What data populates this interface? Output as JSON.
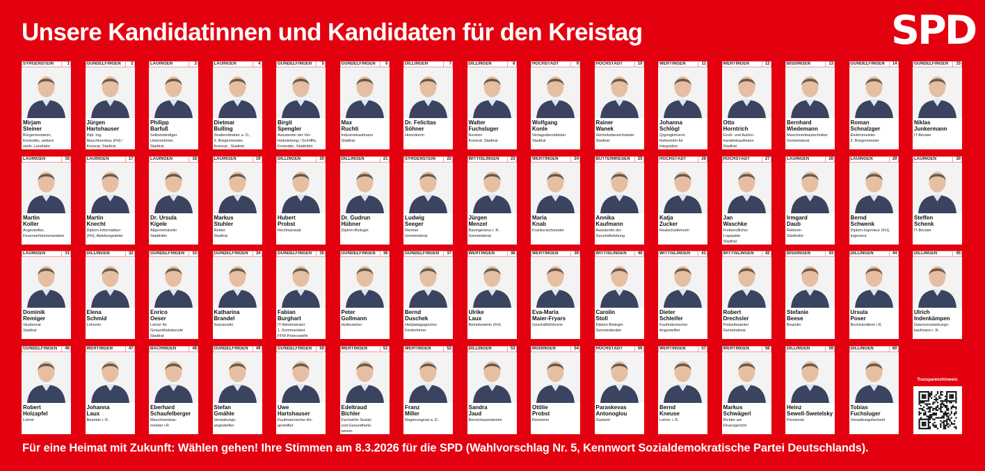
{
  "header": {
    "title": "Unsere Kandidatinnen und Kandidaten für den Kreistag",
    "logo": "SPD"
  },
  "colors": {
    "brand_red": "#e3000f",
    "card_border": "#f19aa0"
  },
  "candidates": [
    {
      "n": "1",
      "town": "SYRGENSTEIN",
      "first": "Mirjam",
      "last": "Steiner",
      "title": [
        "Bürgermeisterin,",
        "Kreisrätin, weitere",
        "stellv. Landrätin"
      ]
    },
    {
      "n": "2",
      "town": "GUNDELFINGEN",
      "first": "Jürgen",
      "last": "Hartshauser",
      "title": [
        "Dipl. Ing.",
        "Maschinenbau (FH) /",
        "Kreisrat, Stadtrat"
      ]
    },
    {
      "n": "3",
      "town": "LAUINGEN",
      "first": "Philipp",
      "last": "Barfuß",
      "title": [
        "Selbstständiger",
        "Unternehmer,",
        "Stadtrat"
      ]
    },
    {
      "n": "4",
      "town": "LAUINGEN",
      "first": "Dietmar",
      "last": "Bulling",
      "title": [
        "Studiendirektor a. D.,",
        "3. Bürgermeister,",
        "Kreisrat , Stadtrat"
      ]
    },
    {
      "n": "5",
      "town": "GUNDELFINGEN",
      "first": "Birgit",
      "last": "Spengler",
      "title": [
        "Assistentin der Ver-",
        "triebsleitung / Schöffin,",
        "Kreisrätin, Stadträtin"
      ]
    },
    {
      "n": "6",
      "town": "GUNDELFINGEN",
      "first": "Max",
      "last": "Ruchti",
      "title": [
        "Industriekaufmann",
        "Stadtrat"
      ]
    },
    {
      "n": "7",
      "town": "DILLINGEN",
      "first": "Dr. Felicitas",
      "last": "Söhner",
      "title": [
        "Historikerin"
      ]
    },
    {
      "n": "8",
      "town": "DILLINGEN",
      "first": "Walter",
      "last": "Fuchsluger",
      "title": [
        "Rentner",
        "Kreisrat, Stadtrat"
      ]
    },
    {
      "n": "9",
      "town": "HÖCHSTÄDT",
      "first": "Wolfgang",
      "last": "Konle",
      "title": [
        "Verlagsdienstleister",
        "Stadtrat"
      ]
    },
    {
      "n": "10",
      "town": "HÖCHSTÄDT",
      "first": "Rainer",
      "last": "Wanek",
      "title": [
        "Vertriebsbereichsleiter",
        "Stadtrat"
      ]
    },
    {
      "n": "11",
      "town": "WERTINGEN",
      "first": "Johanna",
      "last": "Schlögl",
      "title": [
        "Qigonglehrerin",
        "Referentin für",
        "Integration"
      ]
    },
    {
      "n": "12",
      "town": "WERTINGEN",
      "first": "Otto",
      "last": "Horntrich",
      "title": [
        "Groß- und Außen-",
        "handelskaufmann",
        "Stadtrat"
      ]
    },
    {
      "n": "13",
      "town": "BISSINGEN",
      "first": "Bernhard",
      "last": "Wiedemann",
      "title": [
        "Maschinenbautechniker",
        "Gemeinderat"
      ]
    },
    {
      "n": "14",
      "town": "GUNDELFINGEN",
      "first": "Roman",
      "last": "Schnalzger",
      "title": [
        "Elektromeister",
        "2. Bürgermeister"
      ]
    },
    {
      "n": "15",
      "town": "GUNDELFINGEN",
      "first": "Niklas",
      "last": "Junkermann",
      "title": [
        "IT-Berater"
      ]
    },
    {
      "n": "16",
      "town": "LAUINGEN",
      "first": "Martin",
      "last": "Koller",
      "title": [
        "Angestellter,",
        "Feuerwehrkommandant"
      ]
    },
    {
      "n": "17",
      "town": "LAUINGEN",
      "first": "Martin",
      "last": "Knecht",
      "title": [
        "Diplom-Informatiker",
        "(FH), Abteilungsleiter"
      ]
    },
    {
      "n": "18",
      "town": "LAUINGEN",
      "first": "Dr. Ursula",
      "last": "Kigele",
      "title": [
        "Allgemeinärztin",
        "Stadträtin"
      ]
    },
    {
      "n": "19",
      "town": "LAUINGEN",
      "first": "Markus",
      "last": "Stuhler",
      "title": [
        "Rektor",
        "Stadtrat"
      ]
    },
    {
      "n": "20",
      "town": "DILLINGEN",
      "first": "Hubert",
      "last": "Probst",
      "title": [
        "Rechtsanwalt"
      ]
    },
    {
      "n": "21",
      "town": "DILLINGEN",
      "first": "Dr. Gudrun",
      "last": "Hübner",
      "title": [
        "Diplom-Biologin"
      ]
    },
    {
      "n": "22",
      "town": "SYRGENSTEIN",
      "first": "Ludwig",
      "last": "Seeger",
      "title": [
        "Rentner",
        "Gemeinderat"
      ]
    },
    {
      "n": "23",
      "town": "WITTISLINGEN",
      "first": "Jürgen",
      "last": "Menzel",
      "title": [
        "Bauingenieur i. R.",
        "Gemeinderat"
      ]
    },
    {
      "n": "24",
      "town": "WERTINGEN",
      "first": "Maria",
      "last": "Knab",
      "title": [
        "Krankenschwester"
      ]
    },
    {
      "n": "25",
      "town": "BUTTENWIESEN",
      "first": "Annika",
      "last": "Kaufmann",
      "title": [
        "Assistentin der",
        "Geschäftsleitung"
      ]
    },
    {
      "n": "26",
      "town": "HÖCHSTÄDT",
      "first": "Katja",
      "last": "Zucker",
      "title": [
        "Realschullehrerin"
      ]
    },
    {
      "n": "27",
      "town": "HÖCHSTÄDT",
      "first": "Jan",
      "last": "Waschke",
      "title": [
        "Freiberuflicher",
        "Logopäde",
        "Stadtrat"
      ]
    },
    {
      "n": "28",
      "town": "LAUINGEN",
      "first": "Irmgard",
      "last": "Daub",
      "title": [
        "Rektorin",
        "Stadträtin"
      ]
    },
    {
      "n": "29",
      "town": "LAUINGEN",
      "first": "Bernd",
      "last": "Schwenk",
      "title": [
        "Diplom-Ingenieur (FH),",
        "Ingenieur"
      ]
    },
    {
      "n": "30",
      "town": "LAUINGEN",
      "first": "Steffen",
      "last": "Schenk",
      "title": [
        "IT-Berater"
      ]
    },
    {
      "n": "31",
      "town": "LAUINGEN",
      "first": "Dominik",
      "last": "Remiger",
      "title": [
        "Studienrat",
        "Stadtrat"
      ]
    },
    {
      "n": "32",
      "town": "DILLINGEN",
      "first": "Elena",
      "last": "Schmid",
      "title": [
        "Lehrerin"
      ]
    },
    {
      "n": "33",
      "town": "GUNDELFINGEN",
      "first": "Enrico",
      "last": "Oeser",
      "title": [
        "Lehrer für",
        "Gesundheitsberufe",
        "Stadtrat"
      ]
    },
    {
      "n": "34",
      "town": "GUNDELFINGEN",
      "first": "Katharina",
      "last": "Brandel",
      "title": [
        "Sopranistin"
      ]
    },
    {
      "n": "35",
      "town": "GUNDELFINGEN",
      "first": "Fabian",
      "last": "Burghart",
      "title": [
        "IT-Administrator",
        "1. Kommandant",
        "FFW Peterswörth"
      ]
    },
    {
      "n": "36",
      "town": "GUNDELFINGEN",
      "first": "Peter",
      "last": "Gollmann",
      "title": [
        "Heilerzieher"
      ]
    },
    {
      "n": "37",
      "town": "GUNDELFINGEN",
      "first": "Bernd",
      "last": "Duschek",
      "title": [
        "Heilpädagogischer",
        "Förderlehrer"
      ]
    },
    {
      "n": "38",
      "town": "WERTINGEN",
      "first": "Ulrike",
      "last": "Laux",
      "title": [
        "Betriebswirtin (FH)"
      ]
    },
    {
      "n": "39",
      "town": "WERTINGEN",
      "first": "Eva-Maria",
      "last": "Maier-Fryars",
      "title": [
        "Geschäftsführerin"
      ]
    },
    {
      "n": "40",
      "town": "WITTISLINGEN",
      "first": "Carolin",
      "last": "Stoll",
      "title": [
        "Diplom-Biologin",
        "Gemeinderätin"
      ]
    },
    {
      "n": "41",
      "town": "WITTISLINGEN",
      "first": "Dieter",
      "last": "Schleifer",
      "title": [
        "Kaufmännischer",
        "Angestellter"
      ]
    },
    {
      "n": "42",
      "town": "WITTISLINGEN",
      "first": "Robert",
      "last": "Drechsler",
      "title": [
        "Polizeibeamter",
        "Gemeinderat"
      ]
    },
    {
      "n": "43",
      "town": "BISSINGEN",
      "first": "Stefanie",
      "last": "Beese",
      "title": [
        "Beamtin"
      ]
    },
    {
      "n": "44",
      "town": "DILLINGEN",
      "first": "Ursula",
      "last": "Poser",
      "title": [
        "Buchhändlerin i.R."
      ]
    },
    {
      "n": "45",
      "town": "DILLINGEN",
      "first": "Ulrich",
      "last": "Indenkämpen",
      "title": [
        "Datenverarbeitungs-",
        "kaufmann i. R."
      ]
    },
    {
      "n": "46",
      "town": "GUNDELFINGEN",
      "first": "Robert",
      "last": "Holzapfel",
      "title": [
        "Lehrer"
      ]
    },
    {
      "n": "47",
      "town": "WERTINGEN",
      "first": "Johanna",
      "last": "Laux",
      "title": [
        "Beamtin i. R."
      ]
    },
    {
      "n": "48",
      "town": "BÄCHINGEN",
      "first": "Eberhard",
      "last": "Schaufelberger",
      "title": [
        "Maschinenbau-",
        "meister i.R."
      ]
    },
    {
      "n": "49",
      "town": "GUNDELFINGEN",
      "first": "Stefan",
      "last": "Gmähle",
      "title": [
        "Verwaltungs-",
        "angestellter"
      ]
    },
    {
      "n": "50",
      "town": "GUNDELFINGEN",
      "first": "Uwe",
      "last": "Hartshauser",
      "title": [
        "Kaufmännischer An-",
        "gestellter"
      ]
    },
    {
      "n": "51",
      "town": "WERTINGEN",
      "first": "Edeltraud",
      "last": "Bichler",
      "title": [
        "Fachwirtin Sozial-",
        "und Gesundheits-",
        "wesen"
      ]
    },
    {
      "n": "52",
      "town": "WERTINGEN",
      "first": "Franz",
      "last": "Miller",
      "title": [
        "Regierungsrat a. D."
      ]
    },
    {
      "n": "53",
      "town": "DILLINGEN",
      "first": "Sandra",
      "last": "Jaud",
      "title": [
        "Bereichsassistentin"
      ]
    },
    {
      "n": "54",
      "town": "MÖDINGEN",
      "first": "Ottilie",
      "last": "Probst",
      "title": [
        "Rentnerin"
      ]
    },
    {
      "n": "56",
      "town": "HÖCHSTÄDT",
      "first": "Paraskevas",
      "last": "Antonoglou",
      "title": [
        "Gastwirt"
      ]
    },
    {
      "n": "57",
      "town": "WERTINGEN",
      "first": "Bernd",
      "last": "Kneuse",
      "title": [
        "Lehrer i. R."
      ]
    },
    {
      "n": "58",
      "town": "WERTINGEN",
      "first": "Markus",
      "last": "Schwägerl",
      "title": [
        "Richter am",
        "Finanzgericht"
      ]
    },
    {
      "n": "59",
      "town": "DILLINGEN",
      "first": "Heinz",
      "last": "Sewell-Swetelsky",
      "title": [
        "Pensionär"
      ]
    },
    {
      "n": "60",
      "town": "DILLINGEN",
      "first": "Tobias",
      "last": "Fuchsluger",
      "title": [
        "Verwaltungsfachwirt"
      ]
    }
  ],
  "qr": {
    "label": "Transparenzhinweis:",
    "icon": "qr-code-icon"
  },
  "footer": {
    "text": "Für eine Heimat mit Zukunft: Wählen gehen! Ihre Stimmen am 8.3.2026 für die SPD  (Wahlvorschlag Nr. 5, Kennwort Sozialdemokratische Partei Deutschlands)."
  }
}
